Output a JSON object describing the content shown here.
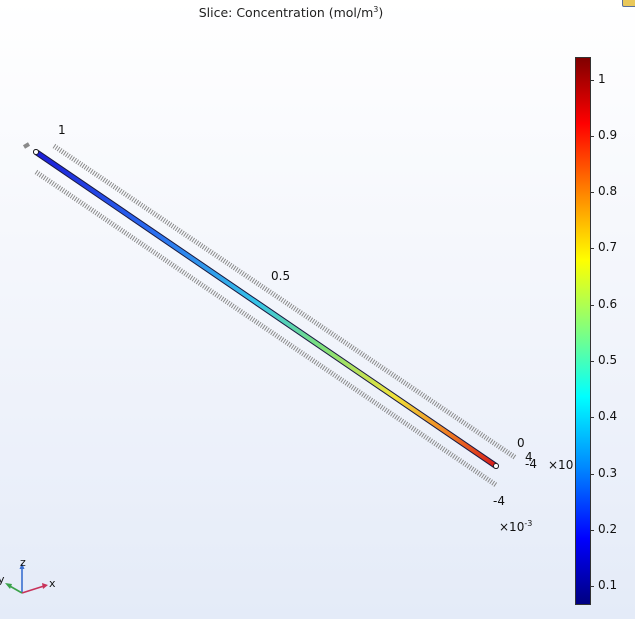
{
  "title": {
    "text": "Slice: Concentration (mol/m",
    "sup": "3",
    "close": ")"
  },
  "axes": {
    "z_tick_1": "1",
    "z_tick_05": "0.5",
    "z_tick_0": "0",
    "x_tick_4": "4",
    "x_tick_neg4": "-4",
    "x_multiplier": "×10",
    "y_tick_neg4": "-4",
    "y_multiplier_base": "×10",
    "y_multiplier_exp": "-3"
  },
  "colorbar": {
    "ticks": [
      {
        "label": "1",
        "value": 1.0
      },
      {
        "label": "0.9",
        "value": 0.9
      },
      {
        "label": "0.8",
        "value": 0.8
      },
      {
        "label": "0.7",
        "value": 0.7
      },
      {
        "label": "0.6",
        "value": 0.6
      },
      {
        "label": "0.5",
        "value": 0.5
      },
      {
        "label": "0.4",
        "value": 0.4
      },
      {
        "label": "0.3",
        "value": 0.3
      },
      {
        "label": "0.2",
        "value": 0.2
      },
      {
        "label": "0.1",
        "value": 0.1
      }
    ],
    "range": [
      0.07,
      1.04
    ],
    "colormap": "rainbow"
  },
  "triad": {
    "z": "z",
    "x": "x",
    "y": "y"
  }
}
